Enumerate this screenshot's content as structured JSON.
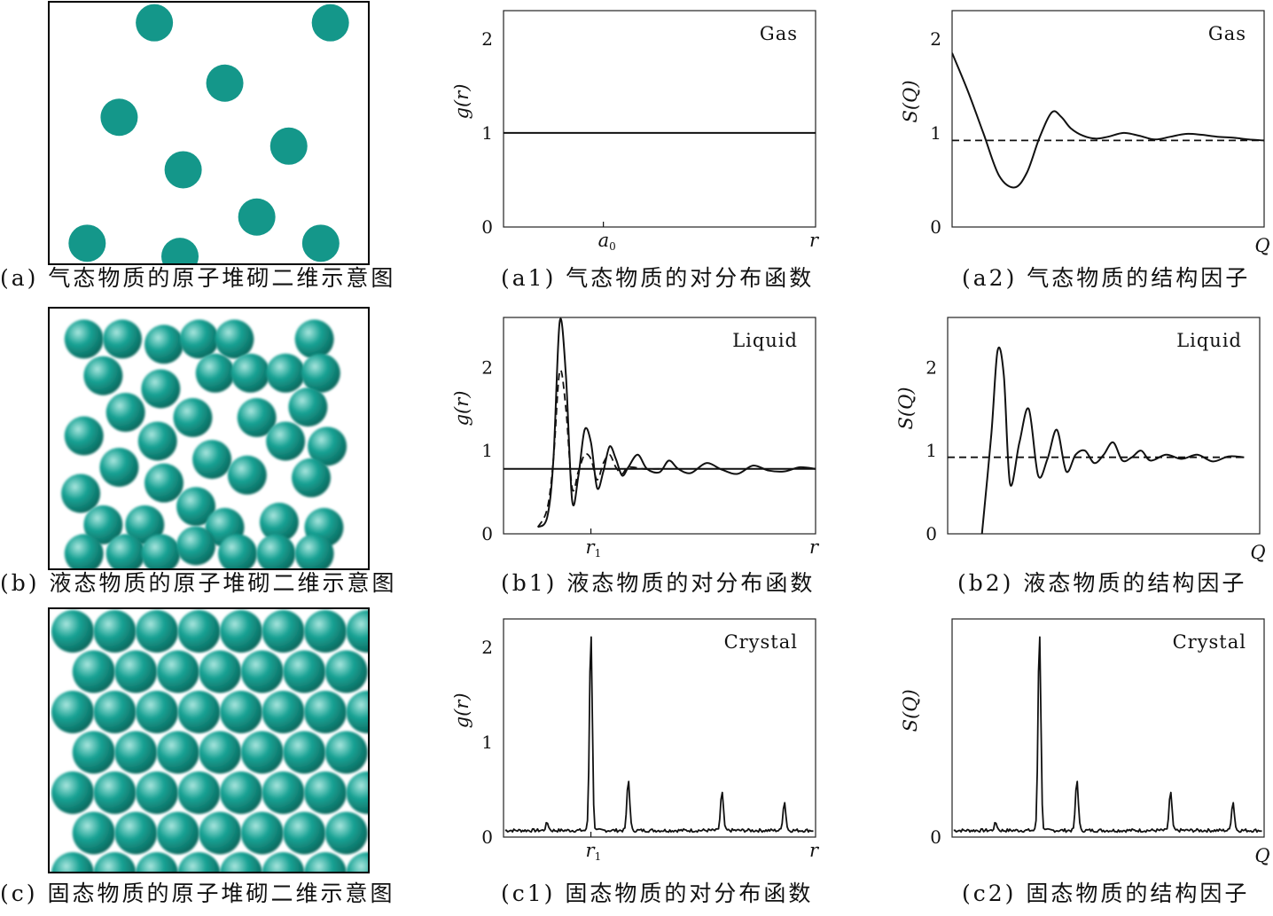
{
  "colors": {
    "atom_fill": "#14978a",
    "atom_highlight": "#8fd9cf",
    "atom_shadow": "#0b6e63",
    "line": "#111111"
  },
  "atom_panels": [
    {
      "caption": "(a) 气态物质的原子堆砌二维示意图",
      "type": "random-sparse",
      "atoms": [
        [
          0.33,
          0.08
        ],
        [
          0.88,
          0.08
        ],
        [
          0.55,
          0.31
        ],
        [
          0.22,
          0.44
        ],
        [
          0.75,
          0.55
        ],
        [
          0.42,
          0.64
        ],
        [
          0.65,
          0.82
        ],
        [
          0.12,
          0.92
        ],
        [
          0.41,
          0.97
        ],
        [
          0.85,
          0.92
        ]
      ]
    },
    {
      "caption": "(b) 液态物质的原子堆砌二维示意图",
      "type": "random-dense",
      "atoms": [
        [
          0.11,
          0.12
        ],
        [
          0.23,
          0.12
        ],
        [
          0.36,
          0.14
        ],
        [
          0.47,
          0.12
        ],
        [
          0.58,
          0.12
        ],
        [
          0.83,
          0.12
        ],
        [
          0.17,
          0.26
        ],
        [
          0.35,
          0.31
        ],
        [
          0.52,
          0.25
        ],
        [
          0.63,
          0.25
        ],
        [
          0.74,
          0.25
        ],
        [
          0.85,
          0.25
        ],
        [
          0.24,
          0.4
        ],
        [
          0.45,
          0.42
        ],
        [
          0.65,
          0.42
        ],
        [
          0.81,
          0.38
        ],
        [
          0.11,
          0.49
        ],
        [
          0.34,
          0.51
        ],
        [
          0.51,
          0.58
        ],
        [
          0.74,
          0.51
        ],
        [
          0.87,
          0.53
        ],
        [
          0.22,
          0.61
        ],
        [
          0.36,
          0.67
        ],
        [
          0.62,
          0.64
        ],
        [
          0.82,
          0.65
        ],
        [
          0.1,
          0.71
        ],
        [
          0.46,
          0.76
        ],
        [
          0.17,
          0.83
        ],
        [
          0.3,
          0.83
        ],
        [
          0.55,
          0.84
        ],
        [
          0.72,
          0.82
        ],
        [
          0.86,
          0.84
        ],
        [
          0.11,
          0.94
        ],
        [
          0.24,
          0.94
        ],
        [
          0.35,
          0.94
        ],
        [
          0.46,
          0.91
        ],
        [
          0.59,
          0.94
        ],
        [
          0.71,
          0.94
        ],
        [
          0.83,
          0.94
        ]
      ]
    },
    {
      "caption": "(c) 固态物质的原子堆砌二维示意图",
      "type": "hexagonal",
      "rows": 7,
      "cols": 7
    }
  ],
  "chart_data": [
    {
      "id": "a1",
      "type": "line",
      "title": "Gas",
      "caption": "(a1) 气态物质的对分布函数",
      "xlabel": "r",
      "ylabel": "g(r)",
      "xlim": [
        0,
        10
      ],
      "ylim": [
        0,
        2.3
      ],
      "yticks": [
        0,
        1,
        2
      ],
      "xtick_label": "a",
      "xtick_sub": "0",
      "xtick_value": 3.2,
      "series": [
        {
          "style": "solid",
          "x": [
            0,
            10
          ],
          "y": [
            1.0,
            1.0
          ]
        }
      ]
    },
    {
      "id": "a2",
      "type": "line",
      "title": "Gas",
      "caption": "(a2) 气态物质的结构因子",
      "xlabel": "Q",
      "ylabel": "S(Q)",
      "xlim": [
        0,
        10
      ],
      "ylim": [
        0,
        2.3
      ],
      "yticks": [
        0,
        1,
        2
      ],
      "series": [
        {
          "style": "solid",
          "x": [
            0.0,
            0.5,
            1.0,
            1.5,
            2.0,
            2.4,
            2.8,
            3.2,
            3.5,
            3.8,
            4.2,
            4.6,
            5.0,
            5.5,
            6.0,
            6.5,
            7.0,
            7.5,
            8.0,
            8.5,
            9.0,
            9.5,
            10.0
          ],
          "y": [
            1.85,
            1.45,
            1.0,
            0.55,
            0.42,
            0.58,
            0.95,
            1.22,
            1.17,
            1.05,
            0.97,
            0.94,
            0.96,
            1.0,
            0.97,
            0.93,
            0.96,
            0.99,
            0.98,
            0.96,
            0.95,
            0.93,
            0.92
          ]
        },
        {
          "style": "dashed",
          "x": [
            0,
            10
          ],
          "y": [
            0.92,
            0.92
          ]
        }
      ]
    },
    {
      "id": "b1",
      "type": "line",
      "title": "Liquid",
      "caption": "(b1) 液态物质的对分布函数",
      "xlabel": "r",
      "ylabel": "g(r)",
      "xlim": [
        0,
        10
      ],
      "ylim": [
        0,
        2.6
      ],
      "yticks": [
        0,
        1,
        2
      ],
      "xtick_label": "r",
      "xtick_sub": "1",
      "xtick_value": 2.8,
      "series": [
        {
          "style": "solid",
          "x": [
            1.1,
            1.4,
            1.6,
            1.8,
            2.0,
            2.2,
            2.4,
            2.6,
            2.8,
            3.0,
            3.2,
            3.4,
            3.6,
            3.8,
            4.0,
            4.3,
            4.6,
            5.0,
            5.3,
            5.6,
            6.0,
            6.5,
            7.0,
            7.5,
            8.0,
            8.5,
            9.0,
            9.5,
            10.0
          ],
          "y": [
            0.08,
            0.2,
            0.9,
            2.55,
            1.9,
            0.4,
            0.7,
            1.25,
            1.1,
            0.55,
            0.75,
            1.05,
            0.9,
            0.7,
            0.8,
            0.95,
            0.78,
            0.74,
            0.88,
            0.78,
            0.73,
            0.85,
            0.77,
            0.72,
            0.82,
            0.76,
            0.75,
            0.8,
            0.78
          ]
        },
        {
          "style": "dashed",
          "x": [
            1.1,
            1.4,
            1.6,
            1.8,
            2.0,
            2.2,
            2.4,
            2.6,
            2.8,
            3.0,
            3.2,
            3.4,
            3.6,
            3.8,
            4.0,
            4.5,
            5.0
          ],
          "y": [
            0.08,
            0.3,
            0.9,
            1.95,
            1.5,
            0.55,
            0.75,
            0.95,
            0.9,
            0.65,
            0.85,
            0.95,
            0.8,
            0.72,
            0.8,
            0.78,
            0.78
          ]
        },
        {
          "style": "solid",
          "x": [
            0,
            10
          ],
          "y": [
            0.78,
            0.78
          ]
        }
      ]
    },
    {
      "id": "b2",
      "type": "line",
      "title": "Liquid",
      "caption": "(b2) 液态物质的结构因子",
      "xlabel": "Q",
      "ylabel": "S(Q)",
      "xlim": [
        0,
        10
      ],
      "ylim": [
        0,
        2.6
      ],
      "yticks": [
        0,
        1,
        2
      ],
      "series": [
        {
          "style": "solid",
          "x": [
            1.1,
            1.4,
            1.6,
            1.8,
            2.0,
            2.3,
            2.6,
            2.9,
            3.2,
            3.5,
            3.8,
            4.1,
            4.4,
            4.7,
            5.0,
            5.3,
            5.6,
            5.9,
            6.2,
            6.5,
            7.0,
            7.5,
            8.0,
            8.5,
            9.0,
            9.5
          ],
          "y": [
            0.0,
            1.2,
            2.2,
            1.9,
            0.6,
            1.1,
            1.5,
            0.7,
            0.9,
            1.25,
            0.75,
            0.95,
            1.0,
            0.85,
            0.95,
            1.1,
            0.88,
            0.92,
            1.0,
            0.88,
            0.95,
            0.9,
            0.95,
            0.87,
            0.93,
            0.92
          ]
        },
        {
          "style": "dashed",
          "x": [
            0,
            9.5
          ],
          "y": [
            0.92,
            0.92
          ]
        }
      ]
    },
    {
      "id": "c1",
      "type": "line",
      "title": "Crystal",
      "caption": "(c1) 固态物质的对分布函数",
      "xlabel": "r",
      "ylabel": "g(r)",
      "xlim": [
        0,
        10
      ],
      "ylim": [
        0,
        2.3
      ],
      "yticks": [
        0,
        1,
        2
      ],
      "xtick_label": "r",
      "xtick_sub": "1",
      "xtick_value": 2.8,
      "series": [
        {
          "style": "noisy",
          "baseline": 0.07,
          "peaks": [
            [
              1.4,
              0.08
            ],
            [
              2.8,
              2.1
            ],
            [
              4.0,
              0.53
            ],
            [
              7.0,
              0.4
            ],
            [
              9.0,
              0.3
            ]
          ]
        }
      ]
    },
    {
      "id": "c2",
      "type": "line",
      "title": "Crystal",
      "caption": "(c2) 固态物质的结构因子",
      "xlabel": "Q",
      "ylabel": "S(Q)",
      "xlim": [
        0,
        10
      ],
      "ylim": [
        0,
        2.3
      ],
      "yticks": [
        0
      ],
      "series": [
        {
          "style": "noisy",
          "baseline": 0.07,
          "peaks": [
            [
              1.4,
              0.08
            ],
            [
              2.8,
              2.1
            ],
            [
              4.0,
              0.53
            ],
            [
              7.0,
              0.4
            ],
            [
              9.0,
              0.3
            ]
          ]
        }
      ]
    }
  ]
}
